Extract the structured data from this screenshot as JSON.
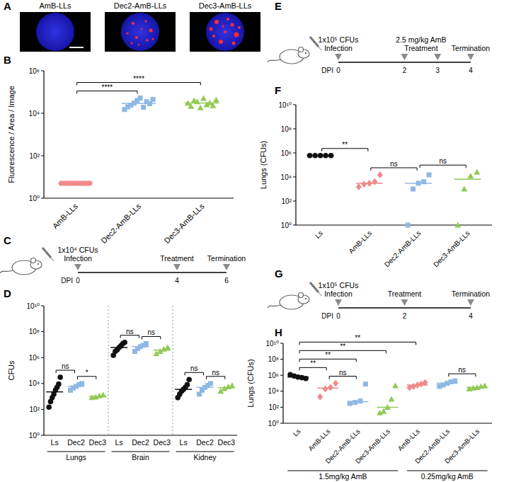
{
  "image_panel": {
    "panel_label": "A",
    "captions": [
      "AmB-LLs",
      "Dec2-AmB-LLs",
      "Dec3-AmB-LLs"
    ]
  },
  "timelines": [
    {
      "panel_label": "C",
      "axis_label": "DPI",
      "days": [
        0,
        4,
        6
      ],
      "events": [
        {
          "text": "Infection",
          "days": [
            0
          ],
          "note": "1x10⁴ CFUs"
        },
        {
          "text": "Treatment",
          "days": [
            4
          ]
        },
        {
          "text": "Termination",
          "days": [
            6
          ]
        }
      ]
    },
    {
      "panel_label": "E",
      "axis_label": "DPI",
      "days": [
        0,
        2,
        3,
        4
      ],
      "events": [
        {
          "text": "Infection",
          "days": [
            0
          ],
          "note": "1x10⁵ CFUs"
        },
        {
          "text": "Treatment",
          "days": [
            2,
            3
          ],
          "note": "2.5 mg/kg AmB"
        },
        {
          "text": "Termination",
          "days": [
            4
          ]
        }
      ]
    },
    {
      "panel_label": "G",
      "axis_label": "DPI",
      "days": [
        0,
        2,
        4
      ],
      "events": [
        {
          "text": "Infection",
          "days": [
            0
          ],
          "note": "1x10⁵ CFUs"
        },
        {
          "text": "Treatment",
          "days": [
            2
          ]
        },
        {
          "text": "Termination",
          "days": [
            4
          ]
        }
      ]
    }
  ],
  "chart_data": [
    {
      "panel_label": "B",
      "type": "dot",
      "y_label": "Fluorescence / Area / Image",
      "log": "y",
      "ylim": [
        1,
        1000000
      ],
      "yticks": [
        {
          "value": 1,
          "label": "10⁰"
        },
        {
          "value": 100,
          "label": "10²"
        },
        {
          "value": 10000,
          "label": "10⁴"
        },
        {
          "value": 1000000,
          "label": "10⁶"
        }
      ],
      "categories": [
        "AmB-LLs",
        "Dec2-AmB-LLs",
        "Dec3-AmB-LLs"
      ],
      "colors": [
        "#ef8a8c",
        "#8fb8e3",
        "#92c956"
      ],
      "markers": [
        "circle",
        "square",
        "triangle"
      ],
      "values": [
        [
          5,
          5,
          5,
          5,
          5,
          5,
          5,
          5,
          5,
          5
        ],
        [
          15000,
          20000,
          24000,
          30000,
          40000,
          52000,
          19000,
          35000,
          28000,
          45000
        ],
        [
          30000,
          21000,
          40000,
          35000,
          18000,
          50000,
          25000,
          31000,
          23000,
          42000
        ]
      ],
      "comparisons": [
        {
          "between": [
            0,
            1
          ],
          "text": "****"
        },
        {
          "between": [
            0,
            2
          ],
          "text": "****"
        }
      ]
    },
    {
      "panel_label": "D",
      "type": "dot",
      "y_label": "CFUs",
      "log": "y",
      "ylim": [
        1,
        10000000000
      ],
      "yticks": [
        {
          "value": 1,
          "label": "10⁰"
        },
        {
          "value": 100,
          "label": "10²"
        },
        {
          "value": 10000,
          "label": "10⁴"
        },
        {
          "value": 1000000,
          "label": "10⁶"
        },
        {
          "value": 100000000,
          "label": "10⁸"
        },
        {
          "value": 10000000000,
          "label": "10¹⁰"
        }
      ],
      "categories": [
        "Ls",
        "Dec2",
        "Dec3",
        "Ls",
        "Dec2",
        "Dec3",
        "Ls",
        "Dec2",
        "Dec3"
      ],
      "colors": [
        "#111111",
        "#8fb8e3",
        "#92c956",
        "#111111",
        "#8fb8e3",
        "#92c956",
        "#111111",
        "#8fb8e3",
        "#92c956"
      ],
      "markers": [
        "circle",
        "square",
        "triangle",
        "circle",
        "square",
        "triangle",
        "circle",
        "square",
        "triangle"
      ],
      "values": [
        [
          150,
          400,
          800,
          1500,
          3000,
          5000,
          9000,
          30000
        ],
        [
          3000,
          4500,
          6000,
          8000,
          10000
        ],
        [
          800,
          900,
          1100,
          1300
        ],
        [
          1500000,
          3000000,
          4000000,
          6000000,
          8000000,
          12000000,
          15000000
        ],
        [
          3000000,
          5000000,
          7000000,
          9000000,
          12000000
        ],
        [
          2000000,
          3000000,
          4500000,
          6000000
        ],
        [
          800,
          1500,
          2500,
          3500,
          5000,
          8000,
          20000
        ],
        [
          1500,
          3000,
          5000,
          7000,
          10000
        ],
        [
          2500,
          4000,
          5500,
          7000
        ]
      ],
      "comparisons": [
        {
          "between": [
            0,
            1
          ],
          "text": "ns"
        },
        {
          "between": [
            1,
            2
          ],
          "text": "*"
        },
        {
          "between": [
            3,
            4
          ],
          "text": "ns"
        },
        {
          "between": [
            4,
            5
          ],
          "text": "ns"
        },
        {
          "between": [
            6,
            7
          ],
          "text": "ns"
        },
        {
          "between": [
            7,
            8
          ],
          "text": "ns"
        }
      ],
      "groups": [
        {
          "label": "Lungs",
          "range": [
            0,
            2
          ]
        },
        {
          "label": "Brain",
          "range": [
            3,
            5
          ]
        },
        {
          "label": "Kidney",
          "range": [
            6,
            8
          ]
        }
      ]
    },
    {
      "panel_label": "F",
      "type": "dot",
      "y_label": "Lungs (CFUs)",
      "log": "y",
      "ylim": [
        1,
        10000000000
      ],
      "yticks": [
        {
          "value": 1,
          "label": "10⁰"
        },
        {
          "value": 100,
          "label": "10²"
        },
        {
          "value": 10000,
          "label": "10⁴"
        },
        {
          "value": 1000000,
          "label": "10⁶"
        },
        {
          "value": 100000000,
          "label": "10⁸"
        },
        {
          "value": 10000000000,
          "label": "10¹⁰"
        }
      ],
      "categories": [
        "Ls",
        "AmB-LLs",
        "Dec2-AmB-LLs",
        "Dec3-AmB-LLs"
      ],
      "colors": [
        "#111111",
        "#ef8a8c",
        "#8fb8e3",
        "#92c956"
      ],
      "markers": [
        "circle",
        "diamond",
        "square",
        "triangle"
      ],
      "values": [
        [
          600000,
          600000,
          600000,
          600000,
          600000
        ],
        [
          1500,
          2500,
          3000,
          4000,
          15000
        ],
        [
          1,
          1000,
          3000,
          4000,
          15000
        ],
        [
          1,
          1000,
          12000,
          25000
        ]
      ],
      "comparisons": [
        {
          "between": [
            0,
            1
          ],
          "text": "**"
        },
        {
          "between": [
            1,
            2
          ],
          "text": "ns"
        },
        {
          "between": [
            2,
            3
          ],
          "text": "ns"
        }
      ]
    },
    {
      "panel_label": "H",
      "type": "dot",
      "y_label": "Lungs (CFUs)",
      "log": "y",
      "ylim": [
        1,
        10000000000
      ],
      "yticks": [
        {
          "value": 1,
          "label": "10⁰"
        },
        {
          "value": 100,
          "label": "10²"
        },
        {
          "value": 10000,
          "label": "10⁴"
        },
        {
          "value": 1000000,
          "label": "10⁶"
        },
        {
          "value": 100000000,
          "label": "10⁸"
        },
        {
          "value": 10000000000,
          "label": "10¹⁰"
        }
      ],
      "categories": [
        "Ls",
        "AmB-LLs",
        "Dec2-AmB-LLs",
        "Dec3-AmB-LLs",
        "AmB-LLs",
        "Dec2-AmB-LLs",
        "Dec3-AmB-LLs"
      ],
      "colors": [
        "#111111",
        "#ef8a8c",
        "#8fb8e3",
        "#92c956",
        "#ef8a8c",
        "#8fb8e3",
        "#92c956"
      ],
      "markers": [
        "circle",
        "diamond",
        "square",
        "triangle",
        "diamond",
        "square",
        "triangle"
      ],
      "values": [
        [
          1200000,
          800000,
          600000,
          500000,
          400000
        ],
        [
          2000,
          20000,
          30000,
          100000
        ],
        [
          300,
          400,
          600,
          80000
        ],
        [
          20,
          30,
          100,
          1000,
          50000
        ],
        [
          30000,
          40000,
          60000,
          80000,
          120000
        ],
        [
          40000,
          60000,
          100000,
          150000,
          200000
        ],
        [
          20000,
          25000,
          30000,
          40000,
          50000
        ]
      ],
      "comparisons": [
        {
          "between": [
            1,
            2
          ],
          "text": "ns"
        },
        {
          "between": [
            5,
            6
          ],
          "text": "ns"
        },
        {
          "between": [
            0,
            1
          ],
          "text": "**"
        },
        {
          "between": [
            0,
            2
          ],
          "text": "**"
        },
        {
          "between": [
            0,
            3
          ],
          "text": "**"
        },
        {
          "between": [
            0,
            4
          ],
          "text": "**"
        }
      ],
      "groups": [
        {
          "label": "1.5mg/kg AmB",
          "range": [
            0,
            3
          ]
        },
        {
          "label": "0.25mg/kg AmB",
          "range": [
            4,
            6
          ]
        }
      ]
    }
  ]
}
